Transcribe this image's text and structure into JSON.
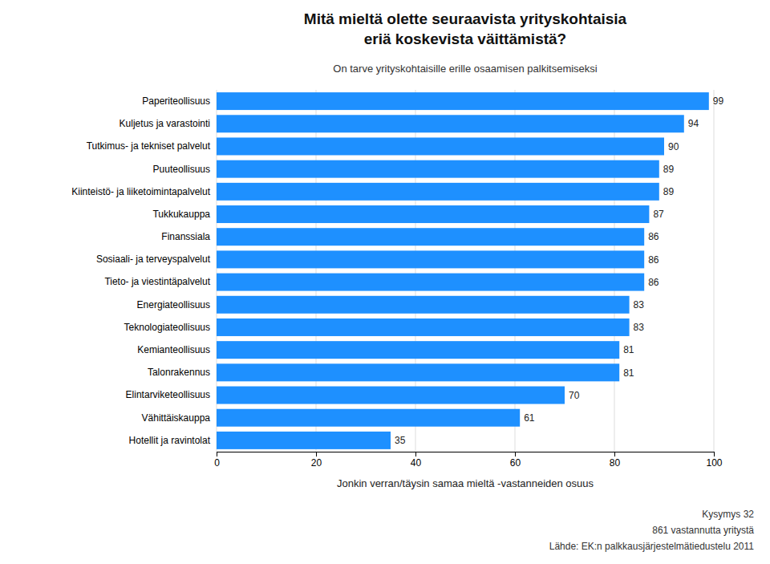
{
  "chart_data": {
    "type": "bar",
    "orientation": "horizontal",
    "title": [
      "Mitä mieltä olette seuraavista yrityskohtaisia",
      "eriä koskevista väittämistä?"
    ],
    "subtitle": "On tarve yrityskohtaisille erille osaamisen palkitsemiseksi",
    "xlabel": "Jonkin verran/täysin samaa mieltä -vastanneiden osuus",
    "annotations": [
      "Kysymys 32",
      "861 vastannutta yritystä",
      "Lähde: EK:n palkkausjärjestelmätiedustelu 2011"
    ],
    "categories": [
      "Paperiteollisuus",
      "Kuljetus ja varastointi",
      "Tutkimus- ja tekniset palvelut",
      "Puuteollisuus",
      "Kiinteistö- ja liiketoimintapalvelut",
      "Tukkukauppa",
      "Finanssiala",
      "Sosiaali- ja terveyspalvelut",
      "Tieto- ja viestintäpalvelut",
      "Energiateollisuus",
      "Teknologiateollisuus",
      "Kemianteollisuus",
      "Talonrakennus",
      "Elintarviketeollisuus",
      "Vähittäiskauppa",
      "Hotellit ja ravintolat"
    ],
    "values": [
      99,
      94,
      90,
      89,
      89,
      87,
      86,
      86,
      86,
      83,
      83,
      81,
      81,
      70,
      61,
      35
    ],
    "color": "#1E90FF",
    "xlim": [
      0,
      100
    ],
    "xticks": [
      0,
      20,
      40,
      60,
      80,
      100
    ],
    "grid": true,
    "data_labels": true
  }
}
